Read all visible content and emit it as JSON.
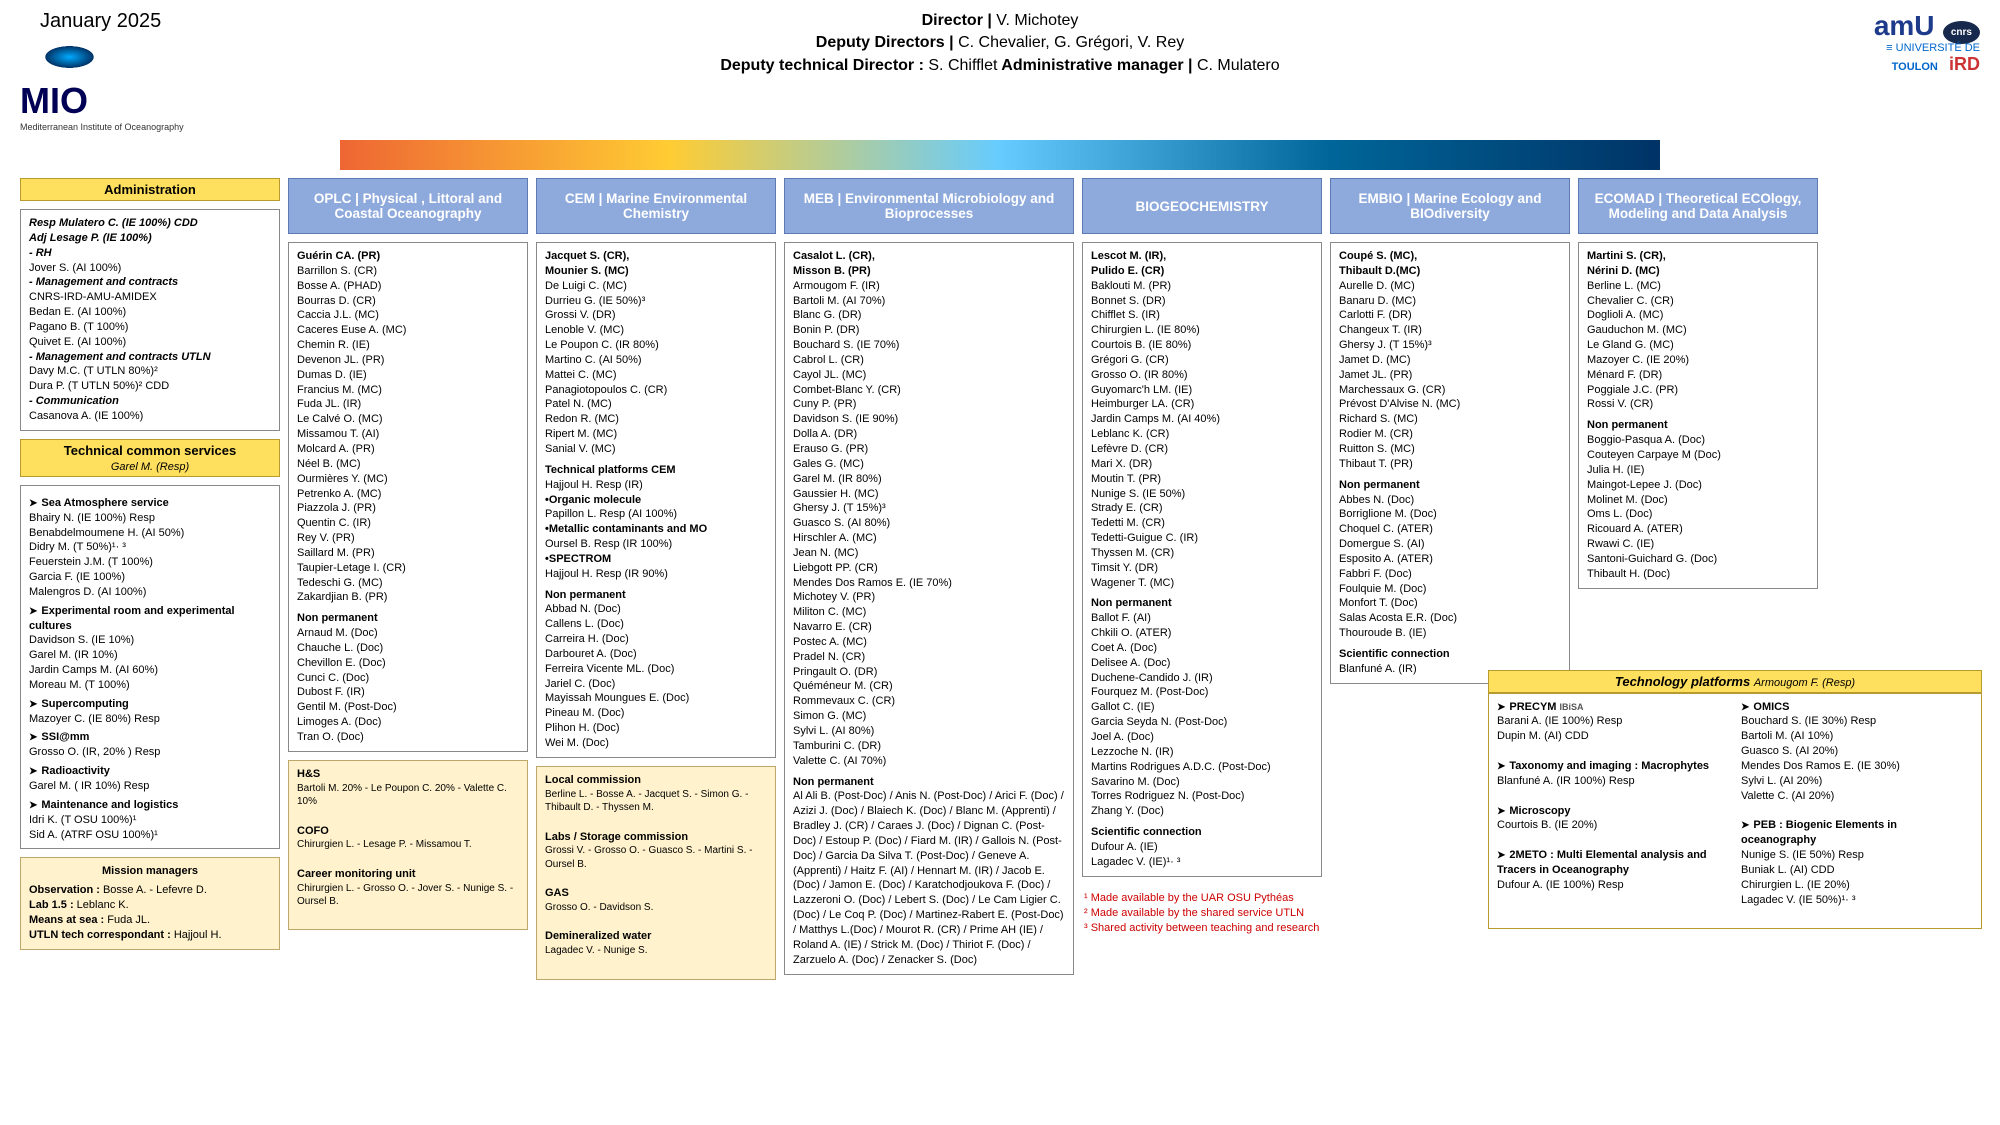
{
  "date": "January 2025",
  "logo": {
    "name": "MIO",
    "sub": "Mediterranean Institute\nof Oceanography"
  },
  "leadership": {
    "director_label": "Director | ",
    "director": "V. Michotey",
    "deputy_label": "Deputy Directors | ",
    "deputies": "C. Chevalier, G. Grégori, V. Rey",
    "tech_dir_label": "Deputy technical Director : ",
    "tech_dir": "S. Chifflet",
    "admin_mgr_label": "  Administrative manager | ",
    "admin_mgr": "C. Mulatero"
  },
  "partner_logos": "amU  Aix Marseille Université   CNRS   Université de TOULON   IRD",
  "admin": {
    "title": "Administration",
    "lines": [
      "Resp Mulatero C. (IE 100%) CDD",
      "Adj Lesage P. (IE 100%)",
      "- RH",
      "Jover S. (AI 100%)",
      "- Management and contracts",
      "  CNRS-IRD-AMU-AMIDEX",
      "Bedan E. (AI 100%)",
      "Pagano B. (T 100%)",
      "Quivet E. (AI 100%)",
      "- Management and contracts UTLN",
      "Davy M.C. (T UTLN 80%)²",
      "Dura P. (T UTLN 50%)² CDD",
      "- Communication",
      "Casanova A. (IE 100%)"
    ]
  },
  "tcs": {
    "title": "Technical common services",
    "head": "Garel M. (Resp)",
    "blocks": [
      {
        "name": "Sea Atmosphere service",
        "lines": [
          "Bhairy N. (IE 100%) Resp",
          "Benabdelmoumene H. (AI 50%)",
          "Didry M. (T 50%)¹· ³",
          "Feuerstein J.M. (T 100%)",
          "Garcia F. (IE 100%)",
          "Malengros D. (AI 100%)"
        ]
      },
      {
        "name": "Experimental room and experimental cultures",
        "lines": [
          "Davidson S. (IE 10%)",
          "Garel M. (IR 10%)",
          "Jardin Camps M. (AI 60%)",
          "Moreau M. (T 100%)"
        ]
      },
      {
        "name": "Supercomputing",
        "lines": [
          "Mazoyer C. (IE 80%) Resp"
        ]
      },
      {
        "name": "SSI@mm",
        "lines": [
          "Grosso O. (IR, 20% ) Resp"
        ]
      },
      {
        "name": "Radioactivity",
        "lines": [
          "Garel M. ( IR 10%) Resp"
        ]
      },
      {
        "name": "Maintenance and logistics",
        "lines": [
          "Idri K. (T OSU 100%)¹",
          "Sid A. (ATRF OSU 100%)¹"
        ]
      }
    ]
  },
  "mission": {
    "title": "Mission managers",
    "lines": [
      "Observation : Bosse A. - Lefevre D.",
      "Lab 1.5 : Leblanc K.",
      "Means at sea : Fuda JL.",
      "UTLN tech correspondant : Hajjoul  H."
    ]
  },
  "teams": [
    {
      "key": "oplc",
      "title": "OPLC | Physical , Littoral and Coastal Oceanography",
      "leaders": "Guérin CA. (PR)",
      "perm": [
        "Barrillon S. (CR)",
        "Bosse A. (PHAD)",
        "Bourras D. (CR)",
        "Caccia J.L. (MC)",
        "Caceres Euse A. (MC)",
        "Chemin R. (IE)",
        "Devenon JL. (PR)",
        "Dumas D. (IE)",
        "Francius M. (MC)",
        "Fuda JL. (IR)",
        "Le Calvé O. (MC)",
        "Missamou T. (AI)",
        "Molcard A. (PR)",
        "Néel B. (MC)",
        "Ourmières Y. (MC)",
        "Petrenko A. (MC)",
        "Piazzola J. (PR)",
        "Quentin C. (IR)",
        "Rey V. (PR)",
        "Saillard M. (PR)",
        "Taupier-Letage I. (CR)",
        "Tedeschi G. (MC)",
        "Zakardjian B. (PR)"
      ],
      "np_label": "Non permanent",
      "np": [
        "Arnaud M. (Doc)",
        "Chauche L. (Doc)",
        "Chevillon E. (Doc)",
        "Cunci C. (Doc)",
        "Dubost F. (IR)",
        "Gentil M. (Post-Doc)",
        "Limoges A. (Doc)",
        "Tran O. (Doc)"
      ]
    },
    {
      "key": "cem",
      "title": "CEM | Marine Environmental Chemistry",
      "leaders": "Jacquet S. (CR),\nMounier S. (MC)",
      "perm": [
        "De Luigi C. (MC)",
        "Durrieu G. (IE 50%)³",
        "Grossi V. (DR)",
        "Lenoble V. (MC)",
        "Le Poupon C. (IR 80%)",
        "Martino C. (AI 50%)",
        "Mattei C. (MC)",
        "Panagiotopoulos C. (CR)",
        "Patel N. (MC)",
        "Redon R. (MC)",
        "Ripert M. (MC)",
        "Sanial V. (MC)"
      ],
      "platforms_label": "Technical platforms CEM",
      "platforms": [
        {
          "n": "",
          "l": [
            "Hajjoul H. Resp (IR)"
          ]
        },
        {
          "n": "•Organic molecule",
          "l": [
            "Papillon L. Resp (AI 100%)"
          ]
        },
        {
          "n": "•Metallic contaminants and MO",
          "l": [
            "Oursel B. Resp (IR 100%)"
          ]
        },
        {
          "n": "•SPECTROM",
          "l": [
            "Hajjoul H. Resp (IR 90%)"
          ]
        }
      ],
      "np_label": "Non permanent",
      "np": [
        "Abbad N. (Doc)",
        "Callens L. (Doc)",
        "Carreira H. (Doc)",
        "Darbouret A. (Doc)",
        "Ferreira Vicente ML. (Doc)",
        "Jariel C. (Doc)",
        "Mayissah Moungues E. (Doc)",
        "Pineau M. (Doc)",
        "Plihon H. (Doc)",
        "Wei M. (Doc)"
      ]
    },
    {
      "key": "meb",
      "title": "MEB | Environmental Microbiology and Bioprocesses",
      "leaders": "Casalot L. (CR),\nMisson B. (PR)",
      "perm": [
        "Armougom F. (IR)",
        "Bartoli M. (AI 70%)",
        "Blanc G. (DR)",
        "Bonin P. (DR)",
        "Bouchard S. (IE 70%)",
        "Cabrol L. (CR)",
        "Cayol JL. (MC)",
        "Combet-Blanc Y. (CR)",
        "Cuny P. (PR)",
        "Davidson S. (IE 90%)",
        "Dolla A. (DR)",
        "Erauso G. (PR)",
        "Gales G. (MC)",
        "Garel M. (IR 80%)",
        "Gaussier H. (MC)",
        "Ghersy J. (T 15%)³",
        "Guasco S. (AI 80%)",
        "Hirschler A. (MC)",
        "Jean N. (MC)",
        "Liebgott PP. (CR)",
        "Mendes Dos Ramos E. (IE 70%)",
        "Michotey V. (PR)",
        "Militon C. (MC)",
        "Navarro E. (CR)",
        "Postec A. (MC)",
        "Pradel N. (CR)",
        "Pringault O. (DR)",
        "Quéméneur M. (CR)",
        "Rommevaux C. (CR)",
        "Simon G. (MC)",
        "Sylvi L. (AI 80%)",
        "Tamburini C. (DR)",
        "Valette C. (AI 70%)"
      ],
      "np_label": "Non permanent",
      "np_text": "Al Ali B. (Post-Doc) / Anis N. (Post-Doc) / Arici F. (Doc) / Azizi J. (Doc) / Blaiech K. (Doc) / Blanc M. (Apprenti) / Bradley J. (CR) / Caraes J. (Doc) / Dignan C. (Post-Doc) / Estoup P. (Doc) / Fiard M. (IR) / Gallois N. (Post-Doc) / Garcia Da Silva T. (Post-Doc) / Geneve A. (Apprenti) / Haitz F. (AI) / Hennart M. (IR) / Jacob E. (Doc) / Jamon E. (Doc) / Karatchodjoukova F. (Doc) / Lazzeroni O. (Doc) / Lebert S. (Doc) / Le Cam Ligier C. (Doc) / Le Coq P. (Doc) / Martinez-Rabert E. (Post-Doc) / Matthys L.(Doc) / Mourot R. (CR) / Prime AH (IE) / Roland A. (IE) / Strick M. (Doc) / Thiriot F. (Doc) / Zarzuelo A. (Doc) / Zenacker S. (Doc)"
    },
    {
      "key": "bio",
      "title": "BIOGEOCHEMISTRY",
      "leaders": "Lescot M. (IR),\nPulido E. (CR)",
      "perm": [
        "Baklouti M. (PR)",
        "Bonnet S. (DR)",
        "Chifflet S. (IR)",
        "Chirurgien L. (IE 80%)",
        "Courtois B. (IE 80%)",
        "Grégori G. (CR)",
        "Grosso O. (IR 80%)",
        "Guyomarc'h LM. (IE)",
        "Heimburger LA. (CR)",
        "Jardin Camps M. (AI 40%)",
        "Leblanc K. (CR)",
        "Lefèvre D. (CR)",
        "Mari X. (DR)",
        "Moutin T. (PR)",
        "Nunige S. (IE 50%)",
        "Strady E. (CR)",
        "Tedetti M. (CR)",
        "Tedetti-Guigue C. (IR)",
        "Thyssen M. (CR)",
        "Timsit Y. (DR)",
        "Wagener T. (MC)"
      ],
      "np_label": "Non permanent",
      "np": [
        "Ballot F. (AI)",
        "Chkili O. (ATER)",
        "Coet A. (Doc)",
        "Delisee A. (Doc)",
        "Duchene-Candido J. (IR)",
        "Fourquez M. (Post-Doc)",
        "Gallot C. (IE)",
        "Garcia Seyda N. (Post-Doc)",
        "Joel A. (Doc)",
        "Lezzoche N. (IR)",
        "Martins Rodrigues A.D.C. (Post-Doc)",
        "Savarino M. (Doc)",
        "Torres Rodriguez N. (Post-Doc)",
        "Zhang Y. (Doc)"
      ],
      "sc_label": "Scientific connection",
      "sc": [
        "Dufour A. (IE)",
        "Lagadec V. (IE)¹· ³"
      ]
    },
    {
      "key": "embio",
      "title": "EMBIO | Marine Ecology and BIOdiversity",
      "leaders": "Coupé S. (MC),\nThibault D.(MC)",
      "perm": [
        "Aurelle D. (MC)",
        "Banaru D. (MC)",
        "Carlotti F. (DR)",
        "Changeux T. (IR)",
        "Ghersy J. (T 15%)³",
        "Jamet D. (MC)",
        "Jamet JL. (PR)",
        "Marchessaux G. (CR)",
        "Prévost D'Alvise N. (MC)",
        "Richard S. (MC)",
        "Rodier M. (CR)",
        "Ruitton S. (MC)",
        "Thibaut T. (PR)"
      ],
      "np_label": "Non permanent",
      "np": [
        "Abbes N. (Doc)",
        "Borriglione M. (Doc)",
        "Choquel C. (ATER)",
        "Domergue S. (AI)",
        "Esposito A. (ATER)",
        "Fabbri F. (Doc)",
        "Foulquie M. (Doc)",
        "Monfort T. (Doc)",
        "Salas Acosta E.R. (Doc)",
        "Thouroude B. (IE)"
      ],
      "sc_label": "Scientific connection",
      "sc": [
        "Blanfuné A. (IR)"
      ]
    },
    {
      "key": "ecomad",
      "title": "ECOMAD | Theoretical ECOlogy, Modeling and Data Analysis",
      "leaders": "Martini S. (CR),\nNérini D. (MC)",
      "perm": [
        "Berline L. (MC)",
        "Chevalier C. (CR)",
        "Doglioli A. (MC)",
        "Gauduchon M. (MC)",
        "Le Gland G. (MC)",
        "Mazoyer C. (IE 20%)",
        "Ménard F. (DR)",
        "Poggiale J.C. (PR)",
        "Rossi V. (CR)"
      ],
      "np_label": "Non permanent",
      "np": [
        "Boggio-Pasqua A. (Doc)",
        "Couteyen Carpaye M (Doc)",
        "Julia H. (IE)",
        "Maingot-Lepee J. (Doc)",
        "Molinet M. (Doc)",
        "Oms L. (Doc)",
        "Ricouard A. (ATER)",
        "Rwawi C. (IE)",
        "Santoni-Guichard G. (Doc)",
        "Thibault H. (Doc)"
      ]
    }
  ],
  "hs": {
    "items": [
      {
        "n": "H&S",
        "l": "Bartoli M. 20% - Le Poupon C. 20% - Valette C. 10%"
      },
      {
        "n": "COFO",
        "l": "Chirurgien L. - Lesage P. - Missamou T."
      },
      {
        "n": "Career monitoring unit",
        "l": "Chirurgien L. - Grosso O. - Jover S. - Nunige S. - Oursel B."
      }
    ]
  },
  "labs": {
    "items": [
      {
        "n": "Local commission",
        "l": "Berline L. - Bosse A. - Jacquet S. - Simon G. - Thibault D. - Thyssen M."
      },
      {
        "n": "Labs / Storage commission",
        "l": "Grossi V. - Grosso O. - Guasco S. - Martini S. - Oursel B."
      },
      {
        "n": "GAS",
        "l": "Grosso O. - Davidson S."
      },
      {
        "n": "Demineralized water",
        "l": "Lagadec V. - Nunige S."
      }
    ]
  },
  "footnotes": [
    "¹ Made available by the UAR OSU Pythéas",
    "² Made available by the shared service UTLN",
    "³ Shared activity between teaching and research"
  ],
  "tech": {
    "title": "Technology platforms",
    "resp": "Armougom F. (Resp)",
    "left": [
      {
        "n": "PRECYM",
        "tag": "IBiSA",
        "l": [
          "Barani A. (IE 100%) Resp",
          "Dupin M. (AI) CDD"
        ]
      },
      {
        "n": "Taxonomy and imaging : Macrophytes",
        "l": [
          "Blanfuné A. (IR 100%) Resp"
        ]
      },
      {
        "n": "Microscopy",
        "l": [
          "Courtois B. (IE 20%)"
        ]
      },
      {
        "n": "2METO : Multi Elemental analysis and Tracers in Oceanography",
        "l": [
          "Dufour A. (IE 100%) Resp"
        ]
      }
    ],
    "right": [
      {
        "n": "OMICS",
        "l": [
          "Bouchard S. (IE 30%) Resp",
          "Bartoli M. (AI 10%)",
          "Guasco S. (AI 20%)",
          "Mendes Dos Ramos E. (IE 30%)",
          "Sylvi L. (AI 20%)",
          "Valette C. (AI 20%)"
        ]
      },
      {
        "n": "PEB : Biogenic Elements in oceanography",
        "l": [
          "Nunige S. (IE 50%) Resp",
          "Buniak L. (AI) CDD",
          "Chirurgien L. (IE 20%)",
          "Lagadec V. (IE 50%)¹· ³"
        ]
      }
    ]
  }
}
